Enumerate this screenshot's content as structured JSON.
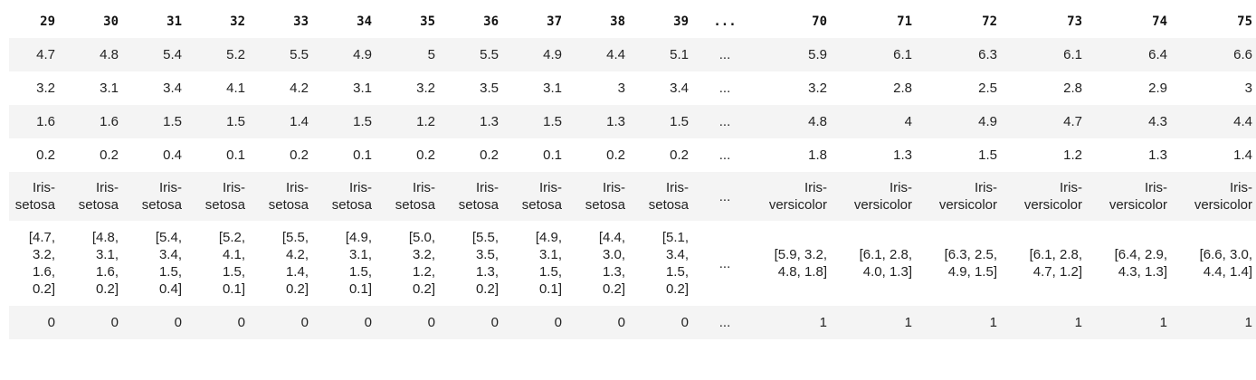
{
  "columns": [
    "29",
    "30",
    "31",
    "32",
    "33",
    "34",
    "35",
    "36",
    "37",
    "38",
    "39",
    "...",
    "70",
    "71",
    "72",
    "73",
    "74",
    "75"
  ],
  "rows": [
    [
      "4.7",
      "4.8",
      "5.4",
      "5.2",
      "5.5",
      "4.9",
      "5",
      "5.5",
      "4.9",
      "4.4",
      "5.1",
      "...",
      "5.9",
      "6.1",
      "6.3",
      "6.1",
      "6.4",
      "6.6"
    ],
    [
      "3.2",
      "3.1",
      "3.4",
      "4.1",
      "4.2",
      "3.1",
      "3.2",
      "3.5",
      "3.1",
      "3",
      "3.4",
      "...",
      "3.2",
      "2.8",
      "2.5",
      "2.8",
      "2.9",
      "3"
    ],
    [
      "1.6",
      "1.6",
      "1.5",
      "1.5",
      "1.4",
      "1.5",
      "1.2",
      "1.3",
      "1.5",
      "1.3",
      "1.5",
      "...",
      "4.8",
      "4",
      "4.9",
      "4.7",
      "4.3",
      "4.4"
    ],
    [
      "0.2",
      "0.2",
      "0.4",
      "0.1",
      "0.2",
      "0.1",
      "0.2",
      "0.2",
      "0.1",
      "0.2",
      "0.2",
      "...",
      "1.8",
      "1.3",
      "1.5",
      "1.2",
      "1.3",
      "1.4"
    ],
    [
      "Iris-\nsetosa",
      "Iris-\nsetosa",
      "Iris-\nsetosa",
      "Iris-\nsetosa",
      "Iris-\nsetosa",
      "Iris-\nsetosa",
      "Iris-\nsetosa",
      "Iris-\nsetosa",
      "Iris-\nsetosa",
      "Iris-\nsetosa",
      "Iris-\nsetosa",
      "...",
      "Iris-\nversicolor",
      "Iris-\nversicolor",
      "Iris-\nversicolor",
      "Iris-\nversicolor",
      "Iris-\nversicolor",
      "Iris-\nversicolor"
    ],
    [
      "[4.7,\n3.2,\n1.6,\n0.2]",
      "[4.8,\n3.1,\n1.6,\n0.2]",
      "[5.4,\n3.4,\n1.5,\n0.4]",
      "[5.2,\n4.1,\n1.5,\n0.1]",
      "[5.5,\n4.2,\n1.4,\n0.2]",
      "[4.9,\n3.1,\n1.5,\n0.1]",
      "[5.0,\n3.2,\n1.2,\n0.2]",
      "[5.5,\n3.5,\n1.3,\n0.2]",
      "[4.9,\n3.1,\n1.5,\n0.1]",
      "[4.4,\n3.0,\n1.3,\n0.2]",
      "[5.1,\n3.4,\n1.5,\n0.2]",
      "...",
      "[5.9, 3.2,\n4.8, 1.8]",
      "[6.1, 2.8,\n4.0, 1.3]",
      "[6.3, 2.5,\n4.9, 1.5]",
      "[6.1, 2.8,\n4.7, 1.2]",
      "[6.4, 2.9,\n4.3, 1.3]",
      "[6.6, 3.0,\n4.4, 1.4]"
    ],
    [
      "0",
      "0",
      "0",
      "0",
      "0",
      "0",
      "0",
      "0",
      "0",
      "0",
      "0",
      "...",
      "1",
      "1",
      "1",
      "1",
      "1",
      "1"
    ]
  ]
}
